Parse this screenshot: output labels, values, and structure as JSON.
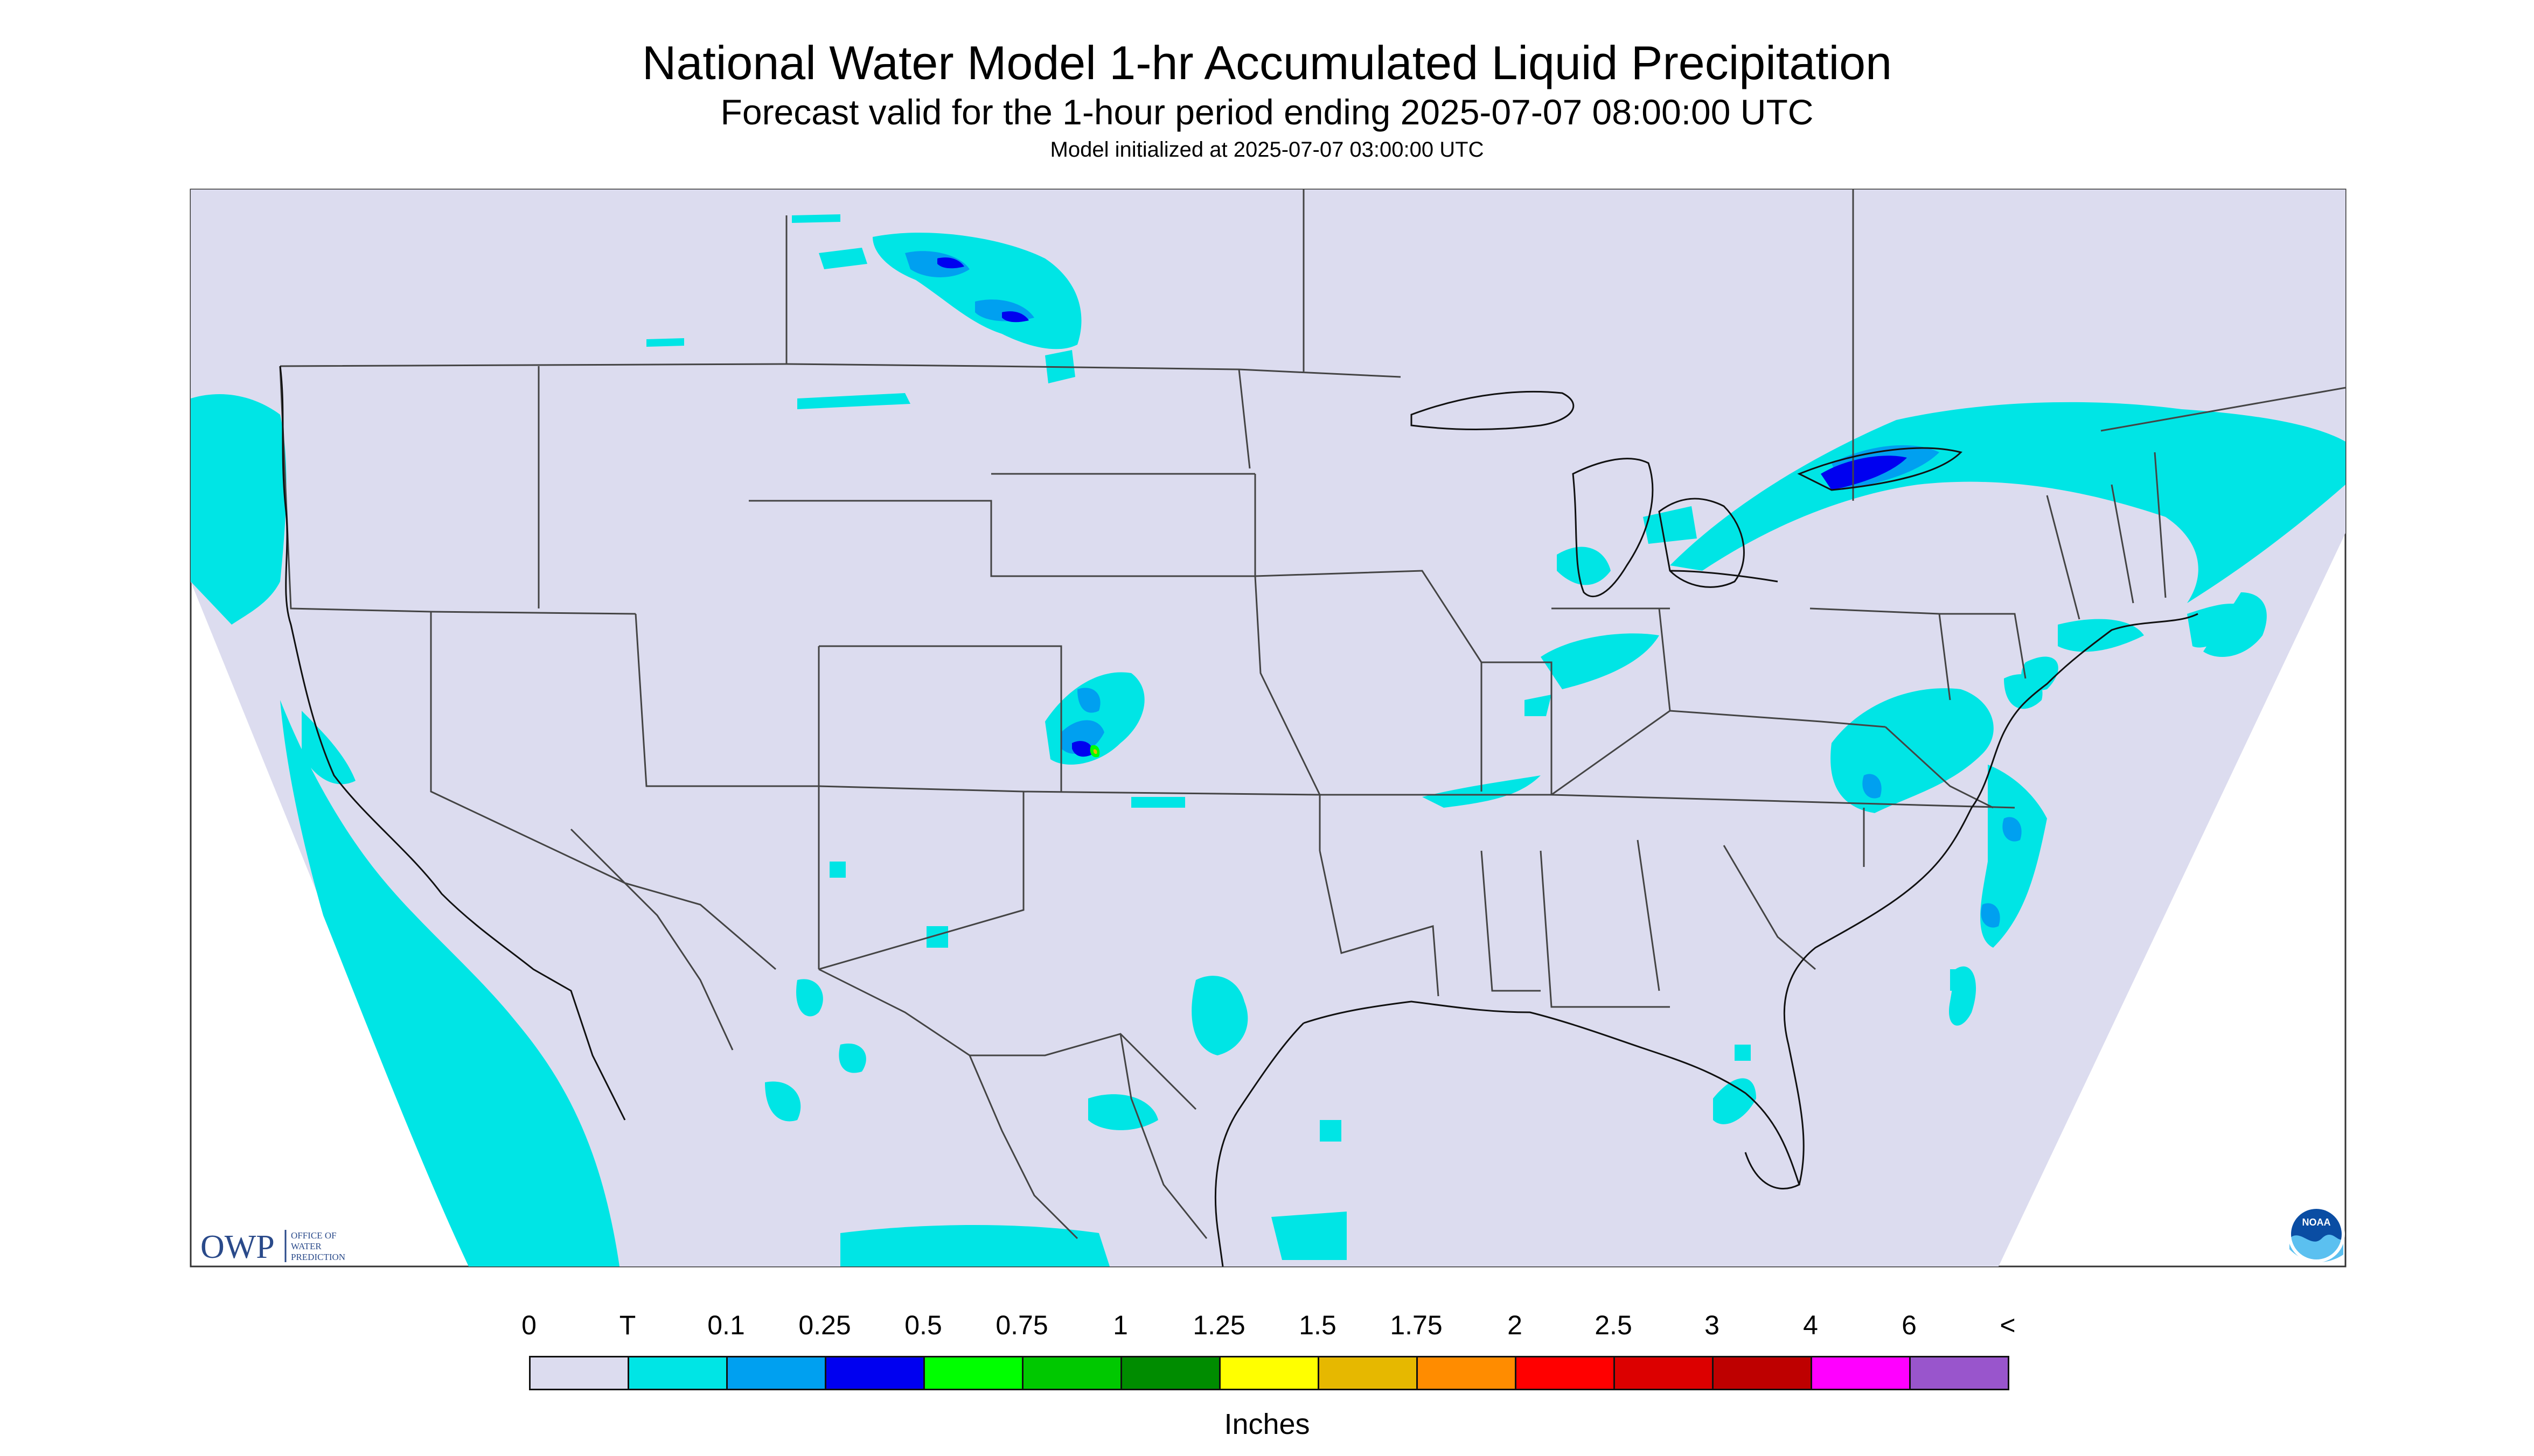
{
  "header": {
    "title": "National Water Model 1-hr Accumulated Liquid Precipitation",
    "subtitle": "Forecast valid for the 1-hour period ending 2025-07-07 08:00:00 UTC",
    "init": "Model initialized at 2025-07-07 03:00:00 UTC"
  },
  "logos": {
    "owp_mark": "OWP",
    "owp_text": [
      "OFFICE OF",
      "WATER",
      "PREDICTION"
    ],
    "noaa_text": "NOAA"
  },
  "legend": {
    "units": "Inches",
    "bins": [
      {
        "label": "0",
        "color": "#dcdcef"
      },
      {
        "label": "T",
        "color": "#00e5e5"
      },
      {
        "label": "0.1",
        "color": "#00a0f0"
      },
      {
        "label": "0.25",
        "color": "#0000f0"
      },
      {
        "label": "0.5",
        "color": "#00ff00"
      },
      {
        "label": "0.75",
        "color": "#00c800"
      },
      {
        "label": "1",
        "color": "#008c00"
      },
      {
        "label": "1.25",
        "color": "#ffff00"
      },
      {
        "label": "1.5",
        "color": "#e6b800"
      },
      {
        "label": "1.75",
        "color": "#ff8c00"
      },
      {
        "label": "2",
        "color": "#ff0000"
      },
      {
        "label": "2.5",
        "color": "#dc0000"
      },
      {
        "label": "3",
        "color": "#be0000"
      },
      {
        "label": "4",
        "color": "#ff00ff"
      },
      {
        "label": "6",
        "color": "#9955cc"
      }
    ],
    "end_label": "<"
  },
  "map_colors": {
    "background": "#dcdcef",
    "trace": "#00e5e5",
    "light": "#00a0f0",
    "moderate": "#0000f0",
    "heavy": "#00ff00",
    "borders": "#444444",
    "coast": "#111111"
  }
}
